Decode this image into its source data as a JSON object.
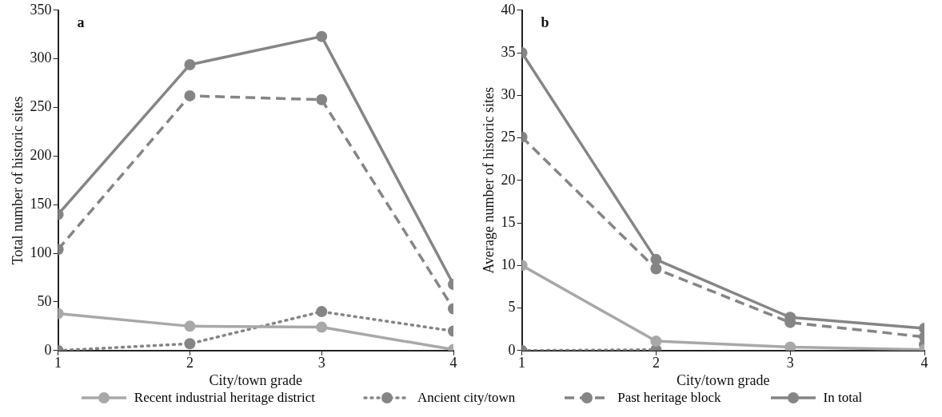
{
  "chart_data": [
    {
      "type": "line",
      "xlabel": "City/town grade",
      "ylabel": "Total number of historic sites",
      "annotations": [
        "a"
      ],
      "x": [
        1,
        2,
        3,
        4
      ],
      "xlim": [
        1,
        4
      ],
      "xticks": [
        1,
        2,
        3,
        4
      ],
      "ylim": [
        0,
        350
      ],
      "yticks": [
        0,
        50,
        100,
        150,
        200,
        250,
        300,
        350
      ],
      "grid": false,
      "legend": "bottom",
      "marker": "circle",
      "series": [
        {
          "name": "Recent industrial heritage district",
          "color": "#a8a8a8",
          "line_style": "solid",
          "values": [
            38,
            25,
            24,
            1
          ]
        },
        {
          "name": "Ancient city/town",
          "color": "#858585",
          "line_style": "dotted",
          "values": [
            0,
            7,
            40,
            20
          ]
        },
        {
          "name": "Past heritage block",
          "color": "#858585",
          "line_style": "dashed",
          "values": [
            104,
            262,
            258,
            43
          ]
        },
        {
          "name": "In total",
          "color": "#858585",
          "line_style": "solid",
          "values": [
            140,
            294,
            323,
            68
          ]
        }
      ]
    },
    {
      "type": "line",
      "xlabel": "City/town grade",
      "ylabel": "Average number of historic sites",
      "annotations": [
        "b"
      ],
      "x": [
        1,
        2,
        3,
        4
      ],
      "xlim": [
        1,
        4
      ],
      "xticks": [
        1,
        2,
        3,
        4
      ],
      "ylim": [
        0,
        40
      ],
      "yticks": [
        0,
        5,
        10,
        15,
        20,
        25,
        30,
        35,
        40
      ],
      "grid": false,
      "legend": "bottom",
      "marker": "circle",
      "series": [
        {
          "name": "Recent industrial heritage district",
          "color": "#a8a8a8",
          "line_style": "solid",
          "values": [
            10,
            1.1,
            0.4,
            0.1
          ]
        },
        {
          "name": "Ancient city/town",
          "color": "#858585",
          "line_style": "dotted",
          "values": [
            0,
            0.1,
            null,
            0.7
          ]
        },
        {
          "name": "Past heritage block",
          "color": "#858585",
          "line_style": "dashed",
          "values": [
            25.1,
            9.6,
            3.3,
            1.6
          ]
        },
        {
          "name": "In total",
          "color": "#858585",
          "line_style": "solid",
          "values": [
            35,
            10.7,
            3.9,
            2.6
          ]
        }
      ]
    }
  ]
}
